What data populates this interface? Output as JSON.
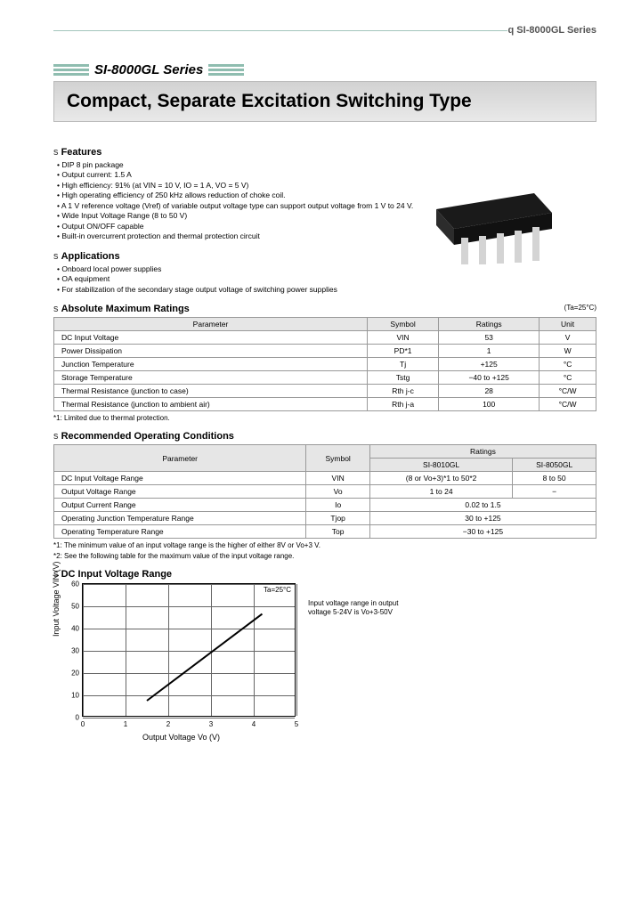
{
  "header": {
    "top_right": "q SI-8000GL Series",
    "series_title": "SI-8000GL Series",
    "banner": "Compact, Separate Excitation Switching Type"
  },
  "features": {
    "title": "Features",
    "items": [
      "DIP 8 pin package",
      "Output current: 1.5 A",
      "High efficiency: 91% (at VIN = 10 V, IO = 1 A, VO = 5 V)",
      "High operating efficiency of 250 kHz allows reduction of choke coil.",
      "A 1 V reference voltage (Vref) of variable output voltage type can support output voltage from 1 V to 24 V.",
      "Wide Input Voltage Range (8 to 50 V)",
      "Output ON/OFF capable",
      "Built-in overcurrent protection and thermal protection circuit"
    ]
  },
  "applications": {
    "title": "Applications",
    "items": [
      "Onboard local power supplies",
      "OA equipment",
      "For stabilization of the secondary stage output voltage of switching power supplies"
    ]
  },
  "abs_max": {
    "title": "Absolute Maximum Ratings",
    "temp_note": "(Ta=25°C)",
    "headers": [
      "Parameter",
      "Symbol",
      "Ratings",
      "Unit"
    ],
    "rows": [
      [
        "DC Input Voltage",
        "VIN",
        "53",
        "V"
      ],
      [
        "Power Dissipation",
        "PD*1",
        "1",
        "W"
      ],
      [
        "Junction Temperature",
        "Tj",
        "+125",
        "°C"
      ],
      [
        "Storage Temperature",
        "Tstg",
        "−40 to +125",
        "°C"
      ],
      [
        "Thermal Resistance (junction to case)",
        "Rth j-c",
        "28",
        "°C/W"
      ],
      [
        "Thermal Resistance (junction to ambient air)",
        "Rth j-a",
        "100",
        "°C/W"
      ]
    ],
    "footnote": "*1: Limited due to thermal protection."
  },
  "rec_op": {
    "title": "Recommended Operating Conditions",
    "headers": {
      "param": "Parameter",
      "symbol": "Symbol",
      "ratings": "Ratings",
      "col_a": "SI-8010GL",
      "col_b": "SI-8050GL"
    },
    "rows": [
      {
        "param": "DC Input Voltage Range",
        "symbol": "VIN",
        "a": "(8 or Vo+3)*1 to 50*2",
        "b": "8 to 50"
      },
      {
        "param": "Output Voltage Range",
        "symbol": "Vo",
        "a": "1 to 24",
        "b": "−"
      },
      {
        "param": "Output Current Range",
        "symbol": "Io",
        "merged": "0.02 to 1.5"
      },
      {
        "param": "Operating Junction Temperature Range",
        "symbol": "Tjop",
        "merged": "30 to +125"
      },
      {
        "param": "Operating Temperature Range",
        "symbol": "Top",
        "merged": "−30 to +125"
      }
    ],
    "footnotes": [
      "*1: The minimum value of an input voltage range is the higher of either 8V or Vo+3 V.",
      "*2: See the following table for the maximum value of the input voltage range."
    ]
  },
  "chart": {
    "title": "DC Input Voltage Range",
    "type": "line",
    "xlabel": "Output Voltage Vo (V)",
    "ylabel": "Input Voltage VIN (V)",
    "inline_note": "Ta=25°C",
    "side_note": "Input voltage range in output voltage 5-24V is Vo+3-50V",
    "xlim": [
      0,
      5
    ],
    "ylim": [
      0,
      60
    ],
    "xticks": [
      0,
      1,
      2,
      3,
      4,
      5
    ],
    "yticks": [
      0,
      10,
      20,
      30,
      40,
      50,
      60
    ],
    "line_points": [
      [
        1.5,
        8
      ],
      [
        4.2,
        47
      ]
    ],
    "line_width": 2,
    "grid_color": "#666666",
    "line_color": "#000000",
    "background_color": "#ffffff"
  },
  "colors": {
    "accent": "#8fbdb0",
    "banner_bg": "#dcdcdc",
    "table_header": "#e6e6e6",
    "border": "#999999"
  }
}
